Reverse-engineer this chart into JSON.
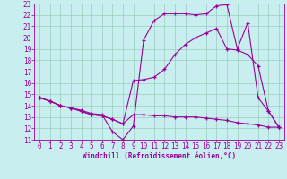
{
  "xlabel": "Windchill (Refroidissement éolien,°C)",
  "bg_color": "#c8eef0",
  "line_color": "#990099",
  "grid_color": "#99ccbb",
  "xlim": [
    -0.5,
    23.5
  ],
  "ylim": [
    11,
    23
  ],
  "xticks": [
    0,
    1,
    2,
    3,
    4,
    5,
    6,
    7,
    8,
    9,
    10,
    11,
    12,
    13,
    14,
    15,
    16,
    17,
    18,
    19,
    20,
    21,
    22,
    23
  ],
  "yticks": [
    11,
    12,
    13,
    14,
    15,
    16,
    17,
    18,
    19,
    20,
    21,
    22,
    23
  ],
  "line1_x": [
    0,
    1,
    2,
    3,
    4,
    5,
    6,
    7,
    8,
    9,
    10,
    11,
    12,
    13,
    14,
    15,
    16,
    17,
    18,
    19,
    20,
    21,
    22,
    23
  ],
  "line1_y": [
    14.7,
    14.4,
    14.0,
    13.8,
    13.6,
    13.3,
    13.2,
    11.7,
    11.0,
    12.2,
    19.8,
    21.5,
    22.1,
    22.1,
    22.1,
    22.0,
    22.1,
    22.8,
    22.9,
    19.0,
    21.3,
    14.7,
    13.5,
    12.1
  ],
  "line2_x": [
    0,
    1,
    2,
    3,
    4,
    5,
    6,
    7,
    8,
    9,
    10,
    11,
    12,
    13,
    14,
    15,
    16,
    17,
    18,
    19,
    20,
    21,
    22,
    23
  ],
  "line2_y": [
    14.7,
    14.4,
    14.0,
    13.8,
    13.5,
    13.2,
    13.1,
    12.8,
    12.4,
    16.2,
    16.3,
    16.5,
    17.2,
    18.5,
    19.4,
    20.0,
    20.4,
    20.8,
    19.0,
    18.9,
    18.5,
    17.5,
    13.5,
    12.1
  ],
  "line3_x": [
    0,
    1,
    2,
    3,
    4,
    5,
    6,
    7,
    8,
    9,
    10,
    11,
    12,
    13,
    14,
    15,
    16,
    17,
    18,
    19,
    20,
    21,
    22,
    23
  ],
  "line3_y": [
    14.7,
    14.4,
    14.0,
    13.8,
    13.5,
    13.2,
    13.1,
    12.8,
    12.4,
    13.2,
    13.2,
    13.1,
    13.1,
    13.0,
    13.0,
    13.0,
    12.9,
    12.8,
    12.7,
    12.5,
    12.4,
    12.3,
    12.1,
    12.1
  ],
  "tick_fontsize": 5.5,
  "xlabel_fontsize": 5.5
}
